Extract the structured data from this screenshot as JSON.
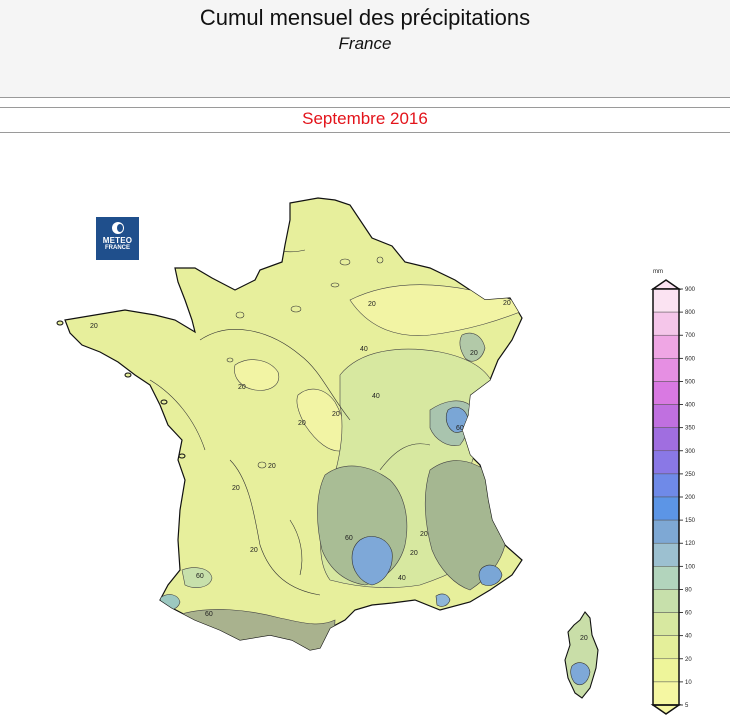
{
  "header": {
    "title": "Cumul mensuel des précipitations",
    "subtitle": "France"
  },
  "period": "Septembre 2016",
  "logo": {
    "line1": "METEO",
    "line2": "FRANCE"
  },
  "map": {
    "contour_labels": [
      "20",
      "20",
      "40",
      "40",
      "20",
      "20",
      "20",
      "20",
      "60",
      "20",
      "20",
      "60",
      "20",
      "20",
      "20",
      "60",
      "60",
      "20",
      "40",
      "20"
    ]
  },
  "legend": {
    "unit": "mm",
    "levels": [
      900,
      800,
      700,
      600,
      500,
      400,
      350,
      300,
      250,
      200,
      150,
      120,
      100,
      80,
      60,
      40,
      20,
      10,
      5
    ],
    "colors": [
      "#fbe3f2",
      "#f5c6ea",
      "#efa6e4",
      "#e68fe3",
      "#d979e2",
      "#c070e0",
      "#a06ee0",
      "#8a78e6",
      "#6f8ae8",
      "#5c95e6",
      "#7ea8d4",
      "#9cc0d0",
      "#b2d4bc",
      "#c7e0ab",
      "#d7e8a0",
      "#e4ef9a",
      "#eef59a",
      "#f5f7a2"
    ]
  }
}
